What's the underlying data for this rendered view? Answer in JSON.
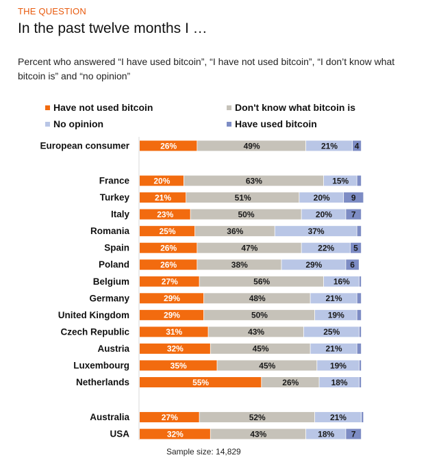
{
  "kicker": "THE QUESTION",
  "title": "In the past twelve months I …",
  "subtitle": "Percent who answered “I have used bitcoin”, “I have not used bitcoin”, “I don’t know what bitcoin is” and “no opinion”",
  "footer": "Sample size: 14,829",
  "colors": {
    "not_used": "#f26b0f",
    "dont_know": "#c6c2b9",
    "no_opinion": "#b9c6e6",
    "used": "#7d8cc4"
  },
  "legend": [
    {
      "label": "Have not used bitcoin",
      "color": "#f26b0f"
    },
    {
      "label": "Don't know what bitcoin is",
      "color": "#c6c2b9"
    },
    {
      "label": "No opinion",
      "color": "#b9c6e6"
    },
    {
      "label": "Have used bitcoin",
      "color": "#7d8cc4"
    }
  ],
  "chart_data": {
    "type": "bar",
    "stacked": true,
    "orientation": "horizontal",
    "categories": [
      "European consumer",
      "France",
      "Turkey",
      "Italy",
      "Romania",
      "Spain",
      "Poland",
      "Belgium",
      "Germany",
      "United Kingdom",
      "Czech Republic",
      "Austria",
      "Luxembourg",
      "Netherlands",
      "Australia",
      "USA"
    ],
    "groups": [
      0,
      1,
      1,
      1,
      1,
      1,
      1,
      1,
      1,
      1,
      1,
      1,
      1,
      1,
      2,
      2
    ],
    "series": [
      {
        "name": "Have not used bitcoin",
        "values": [
          26,
          20,
          21,
          23,
          25,
          26,
          26,
          27,
          29,
          29,
          31,
          32,
          35,
          55,
          27,
          32
        ]
      },
      {
        "name": "Don't know what bitcoin is",
        "values": [
          49,
          63,
          51,
          50,
          36,
          47,
          38,
          56,
          48,
          50,
          43,
          45,
          45,
          26,
          52,
          43
        ]
      },
      {
        "name": "No opinion",
        "values": [
          21,
          15,
          20,
          20,
          37,
          22,
          29,
          16,
          21,
          19,
          25,
          21,
          19,
          18,
          21,
          18
        ]
      },
      {
        "name": "Have used bitcoin",
        "values": [
          4,
          2,
          9,
          7,
          2,
          5,
          6,
          1,
          2,
          2,
          1,
          2,
          1,
          1,
          1,
          7
        ]
      }
    ],
    "labels": [
      [
        "26%",
        "49%",
        "21%",
        "4"
      ],
      [
        "20%",
        "63%",
        "15%",
        ""
      ],
      [
        "21%",
        "51%",
        "20%",
        "9"
      ],
      [
        "23%",
        "50%",
        "20%",
        "7"
      ],
      [
        "25%",
        "36%",
        "37%",
        ""
      ],
      [
        "26%",
        "47%",
        "22%",
        "5"
      ],
      [
        "26%",
        "38%",
        "29%",
        "6"
      ],
      [
        "27%",
        "56%",
        "16%",
        ""
      ],
      [
        "29%",
        "48%",
        "21%",
        ""
      ],
      [
        "29%",
        "50%",
        "19%",
        ""
      ],
      [
        "31%",
        "43%",
        "25%",
        ""
      ],
      [
        "32%",
        "45%",
        "21%",
        ""
      ],
      [
        "35%",
        "45%",
        "19%",
        ""
      ],
      [
        "55%",
        "26%",
        "18%",
        ""
      ],
      [
        "27%",
        "52%",
        "21%",
        ""
      ],
      [
        "32%",
        "43%",
        "18%",
        "7"
      ]
    ],
    "xlim": [
      0,
      100
    ]
  }
}
